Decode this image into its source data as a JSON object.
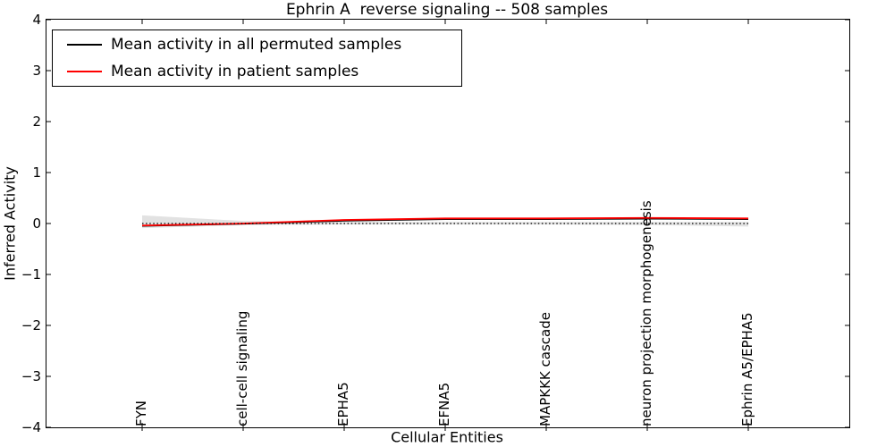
{
  "title": "Ephrin A  reverse signaling -- 508 samples",
  "legend": {
    "entries": [
      {
        "label": "Mean activity in all permuted samples",
        "color": "#000000"
      },
      {
        "label": "Mean activity in patient samples",
        "color": "#ff0000"
      }
    ]
  },
  "axes": {
    "x_label": "Cellular Entities",
    "y_label": "Inferred Activity",
    "y_ticks": [
      "4",
      "3",
      "2",
      "1",
      "0",
      "−1",
      "−2",
      "−3",
      "−4"
    ]
  },
  "chart_data": {
    "type": "line",
    "title": "Ephrin A  reverse signaling -- 508 samples",
    "xlabel": "Cellular Entities",
    "ylabel": "Inferred Activity",
    "ylim": [
      -4,
      4
    ],
    "grid": false,
    "legend_position": "upper left",
    "categories": [
      "FYN",
      "cell-cell signaling",
      "EPHA5",
      "EFNA5",
      "MAPKKK cascade",
      "neuron projection morphogenesis",
      "Ephrin A5/EPHA5"
    ],
    "series": [
      {
        "name": "Mean activity in all permuted samples",
        "color": "#000000",
        "values": [
          -0.05,
          -0.01,
          0.05,
          0.08,
          0.08,
          0.09,
          0.08
        ]
      },
      {
        "name": "Mean activity in patient samples",
        "color": "#ff0000",
        "values": [
          -0.04,
          0.0,
          0.07,
          0.1,
          0.1,
          0.11,
          0.1
        ]
      }
    ],
    "permuted_band": {
      "color": "#e2e2e2",
      "upper": [
        0.16,
        0.05,
        0.03,
        0.03,
        0.03,
        0.03,
        0.03
      ],
      "lower": [
        -0.09,
        -0.03,
        -0.02,
        -0.02,
        -0.02,
        -0.03,
        -0.06
      ]
    },
    "zero_line": {
      "y": 0,
      "style": "dotted",
      "color": "#000000"
    }
  }
}
